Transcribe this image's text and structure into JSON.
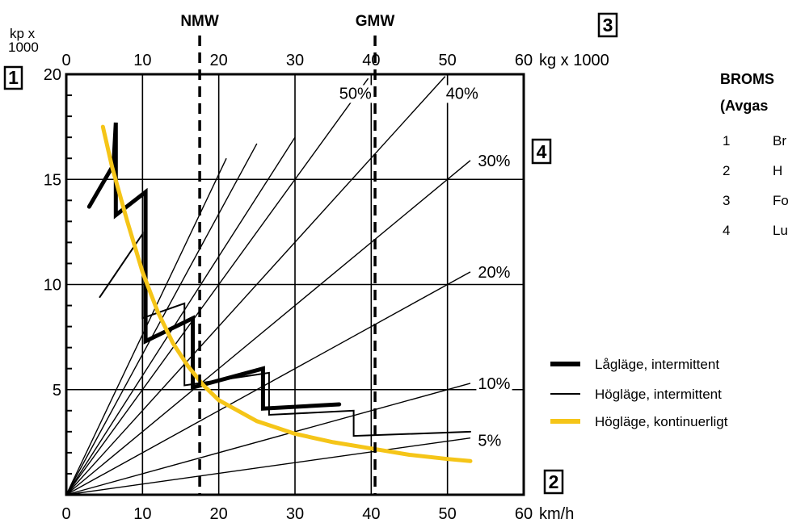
{
  "chart_data": {
    "type": "line",
    "top_axis_label_line1": "kp x",
    "top_axis_label_line2": "1000",
    "x_top_unit": "kg x 1000",
    "x_bottom_unit": "km/h",
    "x_ticks": [
      "0",
      "10",
      "20",
      "30",
      "40",
      "50",
      "60"
    ],
    "x_top_ticks": [
      "0",
      "10",
      "20",
      "30",
      "40",
      "50",
      "60"
    ],
    "y_ticks": [
      "5",
      "10",
      "15",
      "20"
    ],
    "xlim": [
      0,
      60
    ],
    "ylim": [
      0,
      20
    ],
    "grid": true,
    "markers": [
      {
        "label": "NMW",
        "x": 17.5
      },
      {
        "label": "GMW",
        "x": 40.5
      }
    ],
    "grade_lines": [
      {
        "label": "5%",
        "end": [
          53,
          2.7
        ],
        "label_pos": [
          54,
          2.6
        ]
      },
      {
        "label": "10%",
        "end": [
          53,
          5.3
        ],
        "label_pos": [
          54,
          5.3
        ]
      },
      {
        "label": "20%",
        "end": [
          53,
          10.6
        ],
        "label_pos": [
          54,
          10.6
        ]
      },
      {
        "label": "30%",
        "end": [
          53,
          15.9
        ],
        "label_pos": [
          54,
          15.9
        ]
      },
      {
        "label": "40%",
        "end": [
          49.7,
          19.9
        ],
        "label_pos": [
          49.8,
          19.1
        ]
      },
      {
        "label": "50%",
        "end": [
          39.6,
          19.8
        ],
        "label_pos": [
          35.8,
          19.1
        ]
      },
      {
        "label": "",
        "end": [
          30,
          17
        ]
      },
      {
        "label": "",
        "end": [
          25,
          16.7
        ]
      },
      {
        "label": "",
        "end": [
          21,
          16
        ]
      }
    ],
    "callouts": [
      "1",
      "2",
      "3",
      "4"
    ],
    "series": [
      {
        "name": "Lågläge, intermittent",
        "color": "#000000",
        "style": "thick",
        "points": [
          [
            3,
            13.7
          ],
          [
            6.2,
            15.7
          ],
          [
            6.5,
            17.7
          ],
          [
            6.5,
            13.3
          ],
          [
            10.4,
            14.4
          ],
          [
            10.4,
            7.3
          ],
          [
            16.6,
            8.4
          ],
          [
            16.6,
            5.1
          ],
          [
            25.8,
            6.0
          ],
          [
            25.8,
            4.1
          ],
          [
            35.8,
            4.3
          ]
        ]
      },
      {
        "name": "Högläge, intermittent",
        "color": "#000000",
        "style": "thin",
        "points": [
          [
            4.4,
            9.4
          ],
          [
            10,
            12.4
          ],
          [
            10,
            8.4
          ],
          [
            15.5,
            9.1
          ],
          [
            15.5,
            5.2
          ],
          [
            26.6,
            5.8
          ],
          [
            26.6,
            3.8
          ],
          [
            37.7,
            4.0
          ],
          [
            37.7,
            2.8
          ],
          [
            53,
            3.0
          ]
        ]
      },
      {
        "name": "Högläge, kontinuerligt",
        "color": "#f5c518",
        "style": "continuous",
        "points": [
          [
            4.8,
            17.5
          ],
          [
            6,
            15.6
          ],
          [
            8,
            13
          ],
          [
            10,
            10.6
          ],
          [
            12,
            8.7
          ],
          [
            14,
            7.2
          ],
          [
            16,
            6.1
          ],
          [
            18,
            5.2
          ],
          [
            20,
            4.5
          ],
          [
            25,
            3.5
          ],
          [
            30,
            2.9
          ],
          [
            35,
            2.5
          ],
          [
            40,
            2.2
          ],
          [
            45,
            1.9
          ],
          [
            50,
            1.7
          ],
          [
            53,
            1.6
          ]
        ]
      }
    ]
  },
  "legend": {
    "items": [
      {
        "label": "Lågläge, intermittent"
      },
      {
        "label": "Högläge, intermittent"
      },
      {
        "label": "Högläge, kontinuerligt"
      }
    ]
  },
  "sidebar": {
    "title_line1": "BROMS",
    "title_line2": "(Avgas",
    "items": [
      {
        "num": "1",
        "text": "Br"
      },
      {
        "num": "2",
        "text": "H"
      },
      {
        "num": "3",
        "text": "Fo"
      },
      {
        "num": "4",
        "text": "Lu"
      }
    ]
  }
}
